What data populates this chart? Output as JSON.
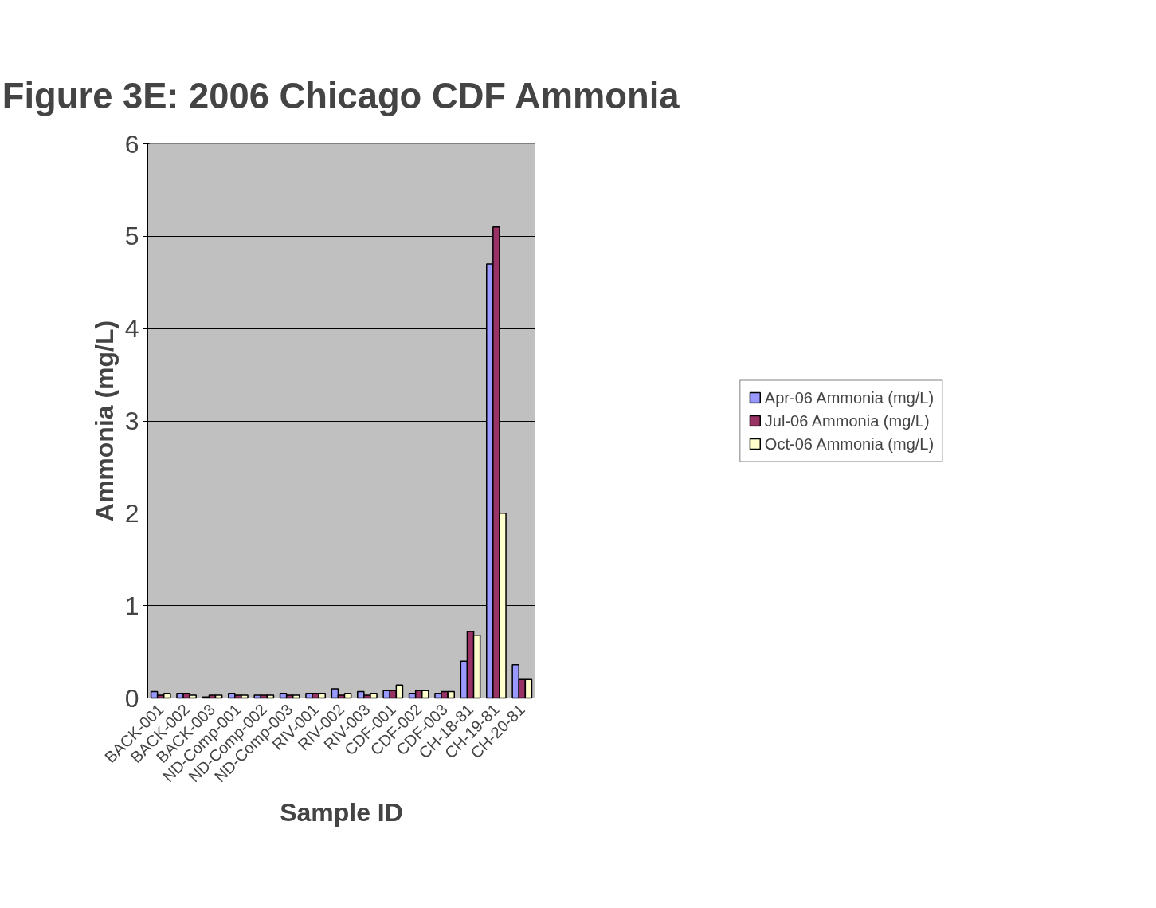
{
  "chart_data": {
    "type": "bar",
    "title": "Figure 3E: 2006 Chicago CDF Ammonia",
    "xlabel": "Sample ID",
    "ylabel": "Ammonia (mg/L)",
    "categories": [
      "BACK-001",
      "BACK-002",
      "BACK-003",
      "ND-Comp-001",
      "ND-Comp-002",
      "ND-Comp-003",
      "RIV-001",
      "RIV-002",
      "RIV-003",
      "CDF-001",
      "CDF-002",
      "CDF-003",
      "CH-18-81",
      "CH-19-81",
      "CH-20-81"
    ],
    "series": [
      {
        "name": "Apr-06 Ammonia (mg/L)",
        "color": "#9999ff",
        "values": [
          0.07,
          0.05,
          0.01,
          0.05,
          0.03,
          0.05,
          0.05,
          0.1,
          0.07,
          0.08,
          0.05,
          0.05,
          0.4,
          4.7,
          0.36
        ]
      },
      {
        "name": "Jul-06 Ammonia (mg/L)",
        "color": "#993366",
        "values": [
          0.03,
          0.05,
          0.03,
          0.03,
          0.03,
          0.03,
          0.05,
          0.03,
          0.03,
          0.08,
          0.08,
          0.07,
          0.72,
          5.1,
          0.2
        ]
      },
      {
        "name": "Oct-06 Ammonia (mg/L)",
        "color": "#ffffcc",
        "values": [
          0.05,
          0.03,
          0.03,
          0.03,
          0.03,
          0.03,
          0.05,
          0.05,
          0.05,
          0.14,
          0.08,
          0.07,
          0.68,
          2.0,
          0.2
        ]
      }
    ],
    "ylim": [
      0,
      6
    ],
    "yticks": [
      0,
      1,
      2,
      3,
      4,
      5,
      6
    ],
    "grid": "y",
    "legend": "right"
  }
}
